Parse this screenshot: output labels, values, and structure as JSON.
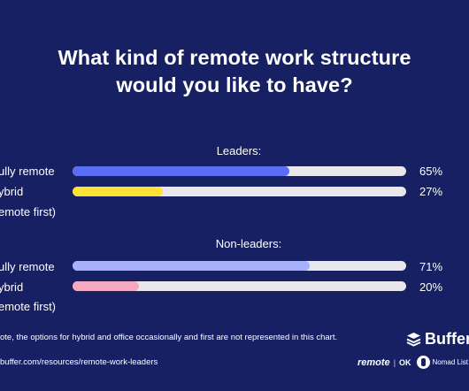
{
  "colors": {
    "background": "#172063",
    "track": "#e8e8ec",
    "fully_remote_leaders": "#5b6cf5",
    "hybrid_leaders": "#ffe233",
    "fully_remote_nonleaders": "#a6b0fb",
    "hybrid_nonleaders": "#f5a9c1"
  },
  "chart_data": {
    "type": "bar",
    "orientation": "horizontal",
    "title": "What kind of remote work structure would you like to have?",
    "title_lines": [
      "What kind of remote work structure",
      "would you like to have?"
    ],
    "xlim": [
      0,
      100
    ],
    "groups": [
      {
        "name": "Leaders:",
        "bars": [
          {
            "label": "ully remote",
            "value": 65,
            "value_label": "65%",
            "color": "#5b6cf5"
          },
          {
            "label": "ybrid",
            "label2": "emote first)",
            "value": 27,
            "value_label": "27%",
            "color": "#ffe233"
          }
        ]
      },
      {
        "name": "Non-leaders:",
        "bars": [
          {
            "label": "ully remote",
            "value": 71,
            "value_label": "71%",
            "color": "#a6b0fb"
          },
          {
            "label": "ybrid",
            "label2": "emote first)",
            "value": 20,
            "value_label": "20%",
            "color": "#f5a9c1"
          }
        ]
      }
    ]
  },
  "footer": {
    "note": "ote, the options for hybrid and office occasionally and first are not represented in this chart.",
    "source": "buffer.com/resources/remote-work-leaders",
    "buffer_logo": "Buffer",
    "buffer_icon": "buffer-stack-icon",
    "remote_ok_logo_a": "remote",
    "remote_ok_logo_b": "OK",
    "nomad_icon": "nomad-list-icon",
    "nomad_logo": "Nomad List"
  }
}
